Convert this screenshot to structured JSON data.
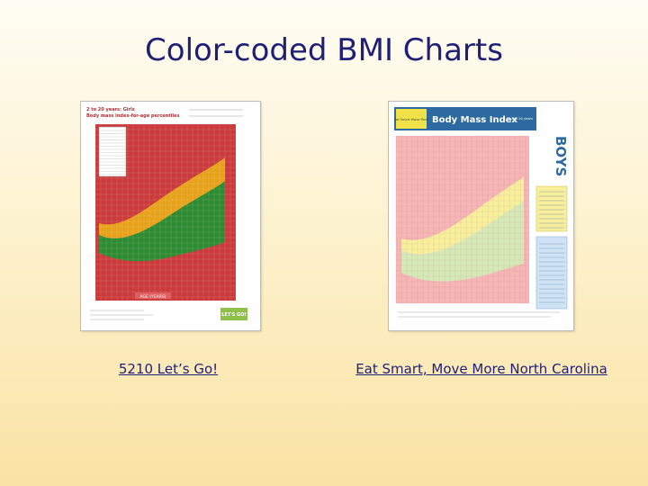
{
  "slide": {
    "title": "Color-coded BMI Charts"
  },
  "figures": [
    {
      "name": "girls-bmi-chart",
      "heading_line1": "2 to 20 years: Girls",
      "heading_line2": "Body mass index-for-age percentiles",
      "x_title": "AGE (YEARS)",
      "logo_text": "LET'S GO!",
      "bands": [
        "#cc3b3b",
        "#e6a21a",
        "#2e8b32",
        "#cc3b3b"
      ]
    },
    {
      "name": "boys-bmi-chart",
      "logo_text": "Eat Smart Move More",
      "heading": "Body Mass Index",
      "age_range": "2 to 20 years",
      "side_label": "BOYS",
      "bands": [
        "#f6b6b6",
        "#f7ef9c",
        "#d6eab8",
        "#f6b6b6"
      ]
    }
  ],
  "links": {
    "left": "5210 Let’s Go!",
    "right": "Eat Smart, Move More North Carolina"
  }
}
